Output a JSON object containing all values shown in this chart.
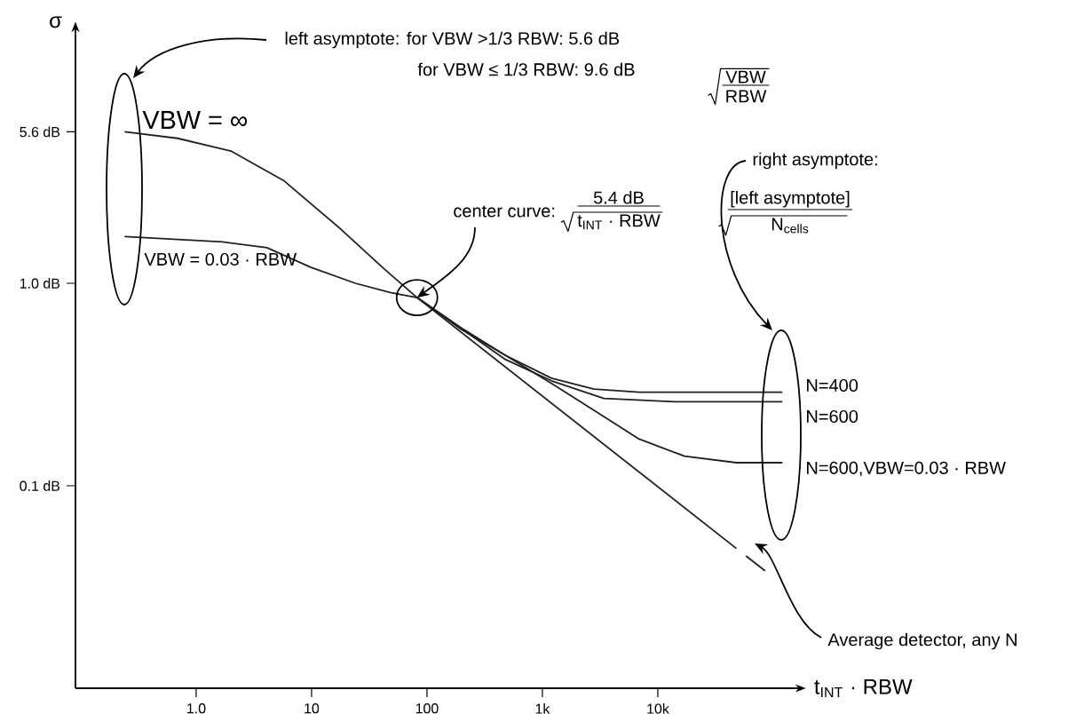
{
  "chart_data": {
    "type": "line",
    "xlabel": "t$_{INT}$ · RBW",
    "ylabel": "σ",
    "log": "xy",
    "xlim": [
      0.09,
      150000
    ],
    "ylim": [
      0.01,
      17
    ],
    "xticks": [
      {
        "value": 1,
        "label": "1.0"
      },
      10,
      100,
      {
        "value": 1000,
        "label": "1k"
      },
      {
        "value": 10000,
        "label": "10k"
      }
    ],
    "yticks": [
      {
        "value": 0.1,
        "label": "0.1 dB"
      },
      {
        "value": 1,
        "label": "1.0 dB"
      },
      {
        "value": 5.6,
        "label": "5.6 dB"
      }
    ],
    "marker": "none",
    "annotations": [
      "left asymptote: for VBW >1/3 RBW: 5.6 dB",
      "for VBW ≤ 1/3 RBW: 9.6 dB",
      "VBW",
      "RBW",
      "VBW = ∞",
      "VBW = 0.03 · RBW",
      {
        "text": "center curve:",
        "x": 82,
        "y": 0.85
      },
      "5.4 dB",
      "t$_{INT}$ · RBW",
      "right asymptote:",
      "[left asymptote]",
      "N$_{cells}$",
      "N=400",
      "N=600",
      "N=600,VBW=0.03 · RBW",
      "Average detector, any N"
    ],
    "series": [
      {
        "color": "#231f20",
        "line_style": "solid",
        "x": [
          0.24,
          0.69,
          2.0,
          5.8,
          17,
          41,
          82,
          200,
          480,
          1200,
          2800,
          6900,
          28000,
          120000
        ],
        "values": [
          5.6,
          5.2,
          4.5,
          3.2,
          1.9,
          1.2,
          0.85,
          0.6,
          0.44,
          0.34,
          0.3,
          0.29,
          0.29,
          0.29
        ]
      },
      {
        "color": "#231f20",
        "line_style": "solid",
        "x": [
          0.24,
          1.7,
          4.1,
          9.8,
          24,
          48,
          82,
          200,
          480,
          1200,
          3400,
          6900,
          17000,
          48000,
          120000
        ],
        "values": [
          1.7,
          1.6,
          1.5,
          1.2,
          1.0,
          0.9,
          0.85,
          0.59,
          0.44,
          0.32,
          0.22,
          0.17,
          0.14,
          0.13,
          0.13
        ]
      },
      {
        "color": "#231f20",
        "line_style": "solid",
        "x": [
          82,
          480,
          1200,
          3400,
          14000,
          120000
        ],
        "values": [
          0.85,
          0.42,
          0.33,
          0.27,
          0.26,
          0.26
        ]
      },
      {
        "color": "#231f20",
        "line_style": "solid",
        "x": [
          82,
          48000
        ],
        "values": [
          0.85,
          0.049
        ]
      },
      {
        "color": "#231f20",
        "line_style": "dashed",
        "x": [
          58000,
          85000
        ],
        "values": [
          0.045,
          0.038
        ]
      }
    ]
  }
}
